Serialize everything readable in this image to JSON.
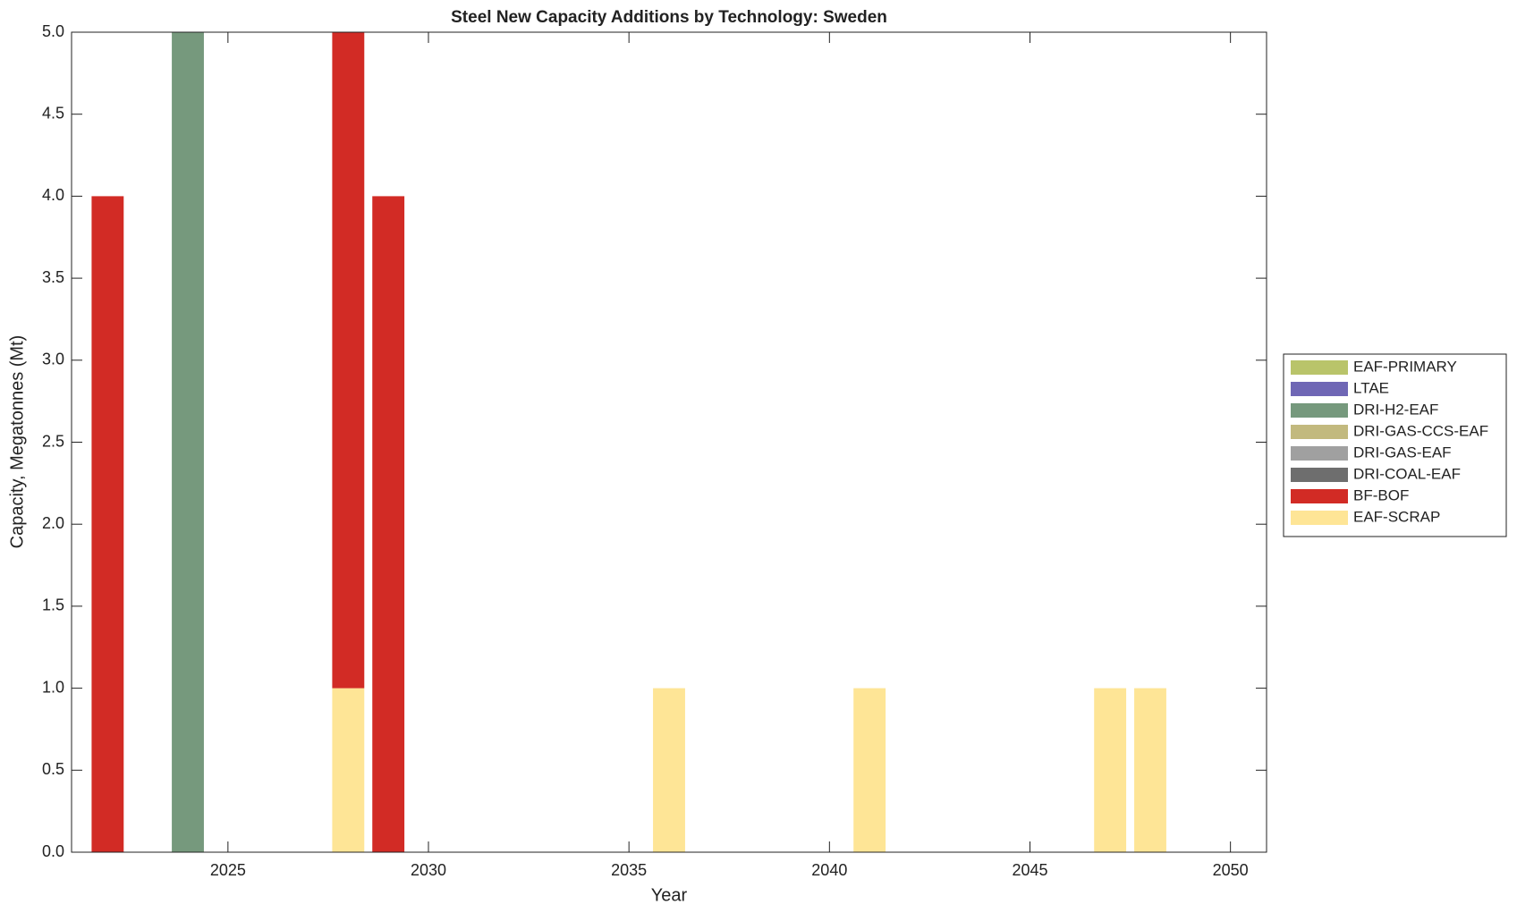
{
  "chart_data": {
    "type": "bar",
    "stacked": true,
    "title": "Steel New Capacity Additions by Technology: Sweden",
    "xlabel": "Year",
    "ylabel": "Capacity, Megatonnes (Mt)",
    "x": [
      2022,
      2024,
      2028,
      2029,
      2036,
      2041,
      2047,
      2048
    ],
    "series": [
      {
        "name": "EAF-PRIMARY",
        "color": "#b9c46a",
        "values": [
          0,
          0,
          0,
          0,
          0,
          0,
          0,
          0
        ]
      },
      {
        "name": "LTAE",
        "color": "#6f67b5",
        "values": [
          0,
          0,
          0,
          0,
          0,
          0,
          0,
          0
        ]
      },
      {
        "name": "DRI-H2-EAF",
        "color": "#76997d",
        "values": [
          0,
          5,
          0,
          0,
          0,
          0,
          0,
          0
        ]
      },
      {
        "name": "DRI-GAS-CCS-EAF",
        "color": "#c2b97e",
        "values": [
          0,
          0,
          0,
          0,
          0,
          0,
          0,
          0
        ]
      },
      {
        "name": "DRI-GAS-EAF",
        "color": "#a0a0a0",
        "values": [
          0,
          0,
          0,
          0,
          0,
          0,
          0,
          0
        ]
      },
      {
        "name": "DRI-COAL-EAF",
        "color": "#6e6e6e",
        "values": [
          0,
          0,
          0,
          0,
          0,
          0,
          0,
          0
        ]
      },
      {
        "name": "BF-BOF",
        "color": "#d22b25",
        "values": [
          4,
          0,
          4,
          4,
          0,
          0,
          0,
          0
        ]
      },
      {
        "name": "EAF-SCRAP",
        "color": "#fee596",
        "values": [
          0,
          0,
          1,
          0,
          1,
          1,
          1,
          1
        ]
      }
    ],
    "xlim": [
      2021.1,
      2050.9
    ],
    "xticks": [
      2025,
      2030,
      2035,
      2040,
      2045,
      2050
    ],
    "ylim": [
      0,
      5
    ],
    "yticks": [
      {
        "value": 0,
        "label": "0.0"
      },
      0.5,
      {
        "value": 1,
        "label": "1.0"
      },
      1.5,
      {
        "value": 2,
        "label": "2.0"
      },
      2.5,
      {
        "value": 3,
        "label": "3.0"
      },
      3.5,
      {
        "value": 4,
        "label": "4.0"
      },
      4.5,
      {
        "value": 5,
        "label": "5.0"
      }
    ],
    "grid": false,
    "legend": "right"
  }
}
